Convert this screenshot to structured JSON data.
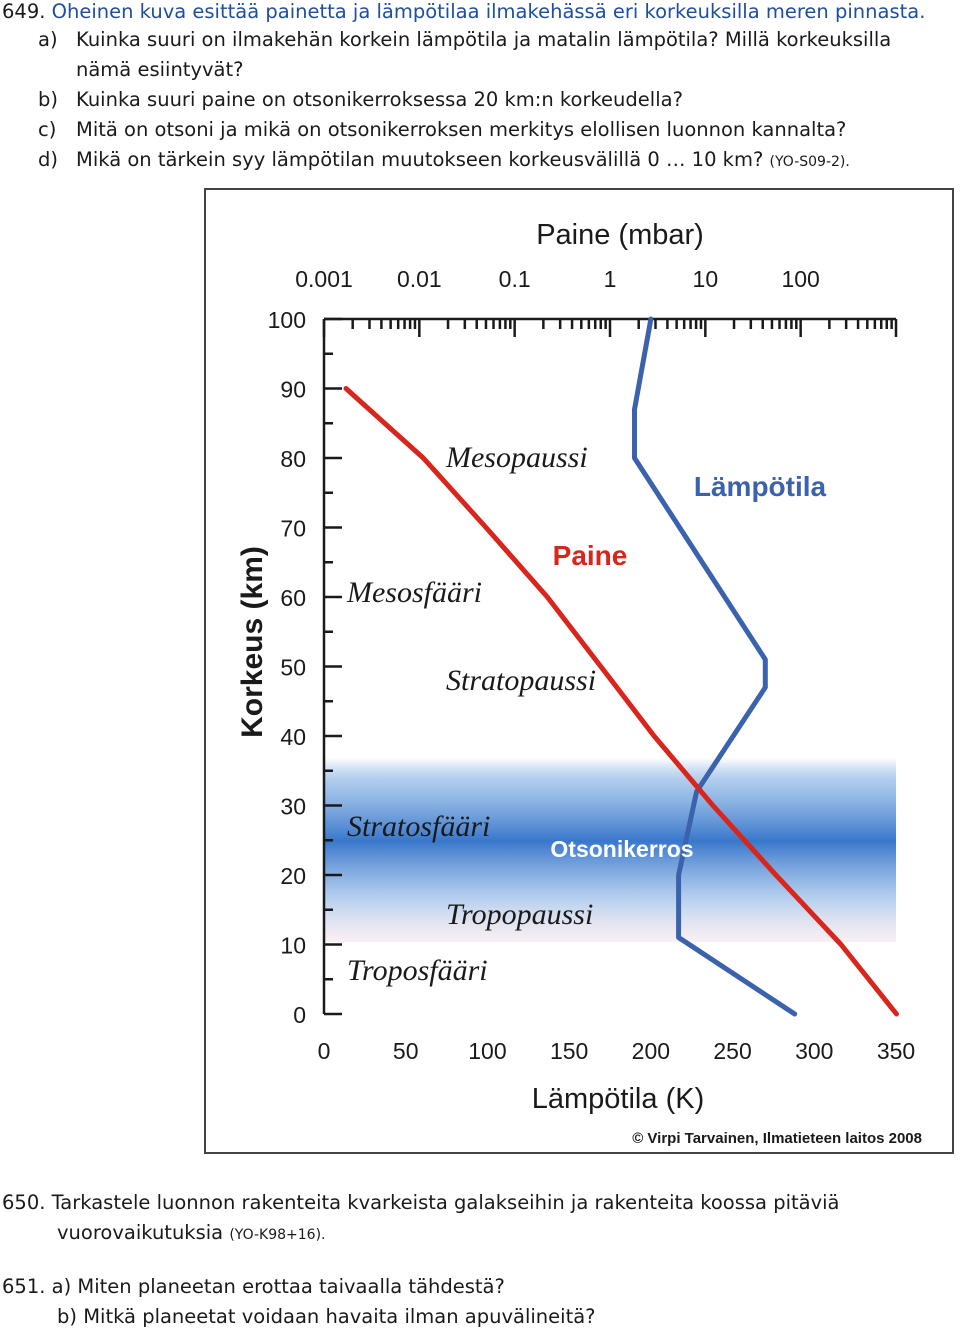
{
  "q649": {
    "number": "649.",
    "text": "Oheinen kuva esittää painetta ja lämpötilaa ilmakehässä eri korkeuksilla meren pinnasta.",
    "items": [
      {
        "label": "a)",
        "text": "Kuinka suuri on ilmakehän korkein lämpötila ja matalin lämpötila? Millä korkeuksilla",
        "cont": "nämä esiintyvät?"
      },
      {
        "label": "b)",
        "text": "Kuinka suuri paine on otsonikerroksessa 20 km:n korkeudella?"
      },
      {
        "label": "c)",
        "text": "Mitä on otsoni ja mikä on otsonikerroksen merkitys elollisen luonnon kannalta?"
      },
      {
        "label": "d)",
        "text": "Mikä on tärkein syy lämpötilan muutokseen korkeusvälillä 0 … 10 km?",
        "ref": "(YO-S09-2)."
      }
    ]
  },
  "chart_data": {
    "type": "line",
    "top_axis_title": "Paine (mbar)",
    "top_ticks": [
      "0.001",
      "0.01",
      "0.1",
      "1",
      "10",
      "100"
    ],
    "ylabel": "Korkeus (km)",
    "xlabel": "Lämpötila (K)",
    "x_ticks": [
      "0",
      "50",
      "100",
      "150",
      "200",
      "250",
      "300",
      "350"
    ],
    "y_ticks": [
      "0",
      "10",
      "20",
      "30",
      "40",
      "50",
      "60",
      "70",
      "80",
      "90",
      "100"
    ],
    "xlim": [
      0,
      350
    ],
    "ylim": [
      0,
      100
    ],
    "top_scale": "log",
    "top_lim": [
      0.001,
      1000
    ],
    "series": [
      {
        "name": "Lämpötila",
        "color": "#3a62ad",
        "axis": "bottom",
        "points": [
          [
            288,
            0
          ],
          [
            217,
            11
          ],
          [
            217,
            20
          ],
          [
            228,
            32
          ],
          [
            270,
            47
          ],
          [
            270,
            51
          ],
          [
            190,
            80
          ],
          [
            190,
            87
          ],
          [
            200,
            100
          ]
        ]
      },
      {
        "name": "Paine",
        "color": "#d9261c",
        "axis": "top",
        "points": [
          [
            1013,
            0
          ],
          [
            265,
            10
          ],
          [
            55,
            20
          ],
          [
            12,
            30
          ],
          [
            2.9,
            40
          ],
          [
            0.8,
            50
          ],
          [
            0.22,
            60
          ],
          [
            0.05,
            70
          ],
          [
            0.011,
            80
          ],
          [
            0.0017,
            90
          ]
        ]
      }
    ],
    "annotations": [
      "Mesopaussi",
      "Mesosfääri",
      "Stratopaussi",
      "Stratosfääri",
      "Tropopaussi",
      "Troposfääri",
      "Otsonikerros"
    ],
    "credit": "© Virpi Tarvainen, Ilmatieteen laitos 2008",
    "colors": {
      "ozone_band": "#3d7fd0",
      "temperature": "#3a62ad",
      "pressure": "#d9261c"
    }
  },
  "q650": {
    "number": "650.",
    "text": "Tarkastele luonnon rakenteita kvarkeista galakseihin ja rakenteita koossa pitäviä",
    "cont": "vuorovaikutuksia",
    "ref": "(YO-K98+16)."
  },
  "q651": {
    "number": "651.",
    "items": [
      {
        "label": "a)",
        "text": "Miten planeetan erottaa taivaalla tähdestä?"
      },
      {
        "label": "b)",
        "text": "Mitkä planeetat voidaan havaita ilman apuvälineitä?"
      }
    ]
  }
}
